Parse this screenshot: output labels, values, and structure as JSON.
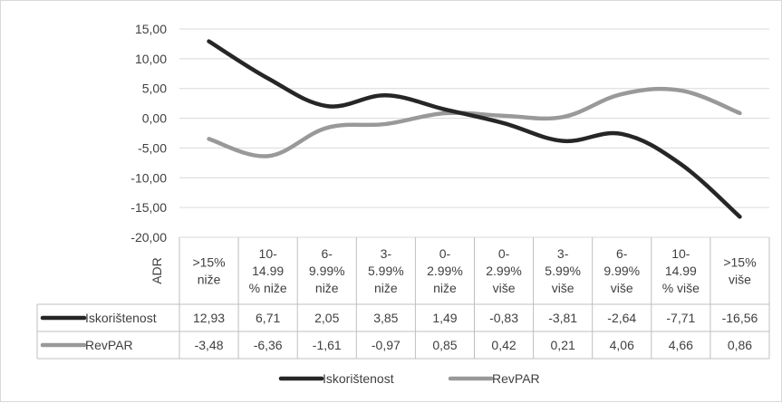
{
  "chart_data": {
    "type": "line",
    "ylabel": "ADR",
    "ylim": [
      -20,
      15
    ],
    "ytick_labels": [
      "15,00",
      "10,00",
      "5,00",
      "0,00",
      "-5,00",
      "-10,00",
      "-15,00",
      "-20,00"
    ],
    "yticks": [
      15,
      10,
      5,
      0,
      -5,
      -10,
      -15,
      -20
    ],
    "categories": [
      [
        ">15%",
        "niže"
      ],
      [
        "10-",
        "14.99",
        "% niže"
      ],
      [
        "6-",
        "9.99%",
        "niže"
      ],
      [
        "3-",
        "5.99%",
        "niže"
      ],
      [
        "0-",
        "2.99%",
        "niže"
      ],
      [
        "0-",
        "2.99%",
        "više"
      ],
      [
        "3-",
        "5.99%",
        "više"
      ],
      [
        "6-",
        "9.99%",
        "više"
      ],
      [
        "10-",
        "14.99",
        "% više"
      ],
      [
        ">15%",
        "više"
      ]
    ],
    "series": [
      {
        "name": "Iskorištenost",
        "color": "#262626",
        "values": [
          12.93,
          6.71,
          2.05,
          3.85,
          1.49,
          -0.83,
          -3.81,
          -2.64,
          -7.71,
          -16.56
        ],
        "labels": [
          "12,93",
          "6,71",
          "2,05",
          "3,85",
          "1,49",
          "-0,83",
          "-3,81",
          "-2,64",
          "-7,71",
          "-16,56"
        ]
      },
      {
        "name": "RevPAR",
        "color": "#999999",
        "values": [
          -3.48,
          -6.36,
          -1.61,
          -0.97,
          0.85,
          0.42,
          0.21,
          4.06,
          4.66,
          0.86
        ],
        "labels": [
          "-3,48",
          "-6,36",
          "-1,61",
          "-0,97",
          "0,85",
          "0,42",
          "0,21",
          "4,06",
          "4,66",
          "0,86"
        ]
      }
    ],
    "grid": true,
    "legend": "bottom",
    "data_table": true
  }
}
